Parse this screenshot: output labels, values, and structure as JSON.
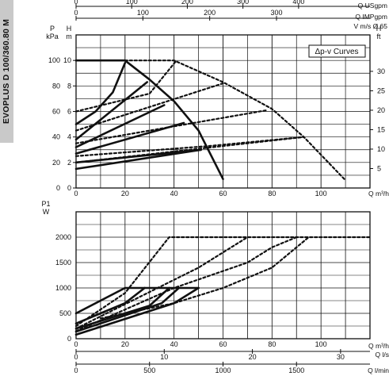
{
  "side_label": "EVOPLUS D 100/360.80 M",
  "chart_data": [
    {
      "type": "line",
      "title": "Δp-v Curves",
      "ylabel_left": [
        "P",
        "kPa"
      ],
      "ylabel_right": [
        "H",
        "m"
      ],
      "ylabel_right_2": [
        "H",
        "ft"
      ],
      "xlabel": "Q m³/h",
      "top_axes": [
        {
          "label": "Q USgpm",
          "ticks": [
            0,
            100,
            200,
            300,
            400
          ],
          "per_m3h": 4.403
        },
        {
          "label": "Q IMPgpm",
          "ticks": [
            0,
            100,
            200,
            300
          ],
          "per_m3h": 3.666
        },
        {
          "label": "V m/s Ø 65",
          "ticks": [],
          "per_m3h": 0
        }
      ],
      "xlim": [
        0,
        120
      ],
      "ylim": [
        0,
        120
      ],
      "x_ticks": [
        0,
        20,
        40,
        60,
        80,
        100
      ],
      "y_ticks": [
        0,
        20,
        40,
        60,
        80,
        100
      ],
      "m_ticks": [
        0,
        2,
        4,
        6,
        8,
        10
      ],
      "ft_ticks": [
        5,
        10,
        15,
        20,
        25,
        30
      ],
      "grid": true,
      "series": [
        {
          "style": "solid",
          "points": [
            [
              0,
              15
            ],
            [
              51,
              30
            ]
          ]
        },
        {
          "style": "solid",
          "points": [
            [
              0,
              20
            ],
            [
              51,
              30
            ]
          ]
        },
        {
          "style": "solid",
          "points": [
            [
              0,
              27
            ],
            [
              44,
              51
            ]
          ]
        },
        {
          "style": "solid",
          "points": [
            [
              0,
              32
            ],
            [
              36,
              65
            ]
          ]
        },
        {
          "style": "solid",
          "points": [
            [
              0,
              38
            ],
            [
              29,
              83
            ]
          ]
        },
        {
          "style": "solid",
          "points": [
            [
              0,
              50
            ],
            [
              8,
              60
            ],
            [
              15,
              75
            ],
            [
              20,
              98
            ]
          ]
        },
        {
          "style": "solid",
          "points": [
            [
              0,
              100
            ],
            [
              20,
              100
            ],
            [
              30,
              85
            ],
            [
              40,
              68
            ],
            [
              50,
              45
            ],
            [
              60,
              7
            ]
          ]
        },
        {
          "style": "dotted",
          "points": [
            [
              0,
              20
            ],
            [
              93,
              40
            ]
          ]
        },
        {
          "style": "dotted",
          "points": [
            [
              0,
              25
            ],
            [
              55,
              33
            ],
            [
              93,
              40
            ]
          ]
        },
        {
          "style": "dotted",
          "points": [
            [
              0,
              35
            ],
            [
              78,
              61
            ]
          ]
        },
        {
          "style": "dotted",
          "points": [
            [
              0,
              45
            ],
            [
              60,
              82
            ]
          ]
        },
        {
          "style": "dotted",
          "points": [
            [
              0,
              60
            ],
            [
              30,
              74
            ],
            [
              41,
              100
            ]
          ]
        },
        {
          "style": "dotted",
          "points": [
            [
              20,
              100
            ],
            [
              40,
              100
            ],
            [
              60,
              83
            ],
            [
              80,
              62
            ],
            [
              93,
              40
            ],
            [
              110,
              6
            ]
          ]
        }
      ]
    },
    {
      "type": "line",
      "ylabel": [
        "P1",
        "W"
      ],
      "xlabel_axes": [
        {
          "label": "Q m³/h",
          "ticks": [
            0,
            20,
            40,
            60,
            80,
            100
          ],
          "per_m3h": 1
        },
        {
          "label": "Q l/s",
          "ticks": [
            0,
            10,
            20,
            30
          ],
          "per_m3h": 0.2778
        },
        {
          "label": "Q l/min",
          "ticks": [
            0,
            500,
            1000,
            1500
          ],
          "per_m3h": 16.667
        }
      ],
      "xlim": [
        0,
        120
      ],
      "ylim": [
        0,
        2500
      ],
      "y_ticks": [
        0,
        500,
        1000,
        1500,
        2000
      ],
      "grid": true,
      "series": [
        {
          "style": "solid",
          "points": [
            [
              0,
              500
            ],
            [
              20,
              1000
            ],
            [
              50,
              1000
            ]
          ]
        },
        {
          "style": "solid",
          "points": [
            [
              0,
              300
            ],
            [
              20,
              700
            ],
            [
              28,
              1000
            ]
          ]
        },
        {
          "style": "solid",
          "points": [
            [
              0,
              200
            ],
            [
              30,
              650
            ],
            [
              38,
              1000
            ]
          ]
        },
        {
          "style": "solid",
          "points": [
            [
              0,
              140
            ],
            [
              35,
              700
            ],
            [
              42,
              1000
            ]
          ]
        },
        {
          "style": "solid",
          "points": [
            [
              0,
              80
            ],
            [
              40,
              700
            ],
            [
              50,
              1000
            ]
          ]
        },
        {
          "style": "dotted",
          "points": [
            [
              0,
              250
            ],
            [
              20,
              900
            ],
            [
              38,
              2000
            ],
            [
              120,
              2000
            ]
          ]
        },
        {
          "style": "dotted",
          "points": [
            [
              0,
              200
            ],
            [
              50,
              1400
            ],
            [
              70,
              2000
            ]
          ]
        },
        {
          "style": "dotted",
          "points": [
            [
              0,
              150
            ],
            [
              40,
              1000
            ],
            [
              70,
              1500
            ],
            [
              80,
              1800
            ],
            [
              90,
              2000
            ]
          ]
        },
        {
          "style": "dotted",
          "points": [
            [
              10,
              400
            ],
            [
              40,
              700
            ],
            [
              60,
              1000
            ],
            [
              80,
              1400
            ],
            [
              95,
              2000
            ]
          ]
        }
      ]
    }
  ]
}
